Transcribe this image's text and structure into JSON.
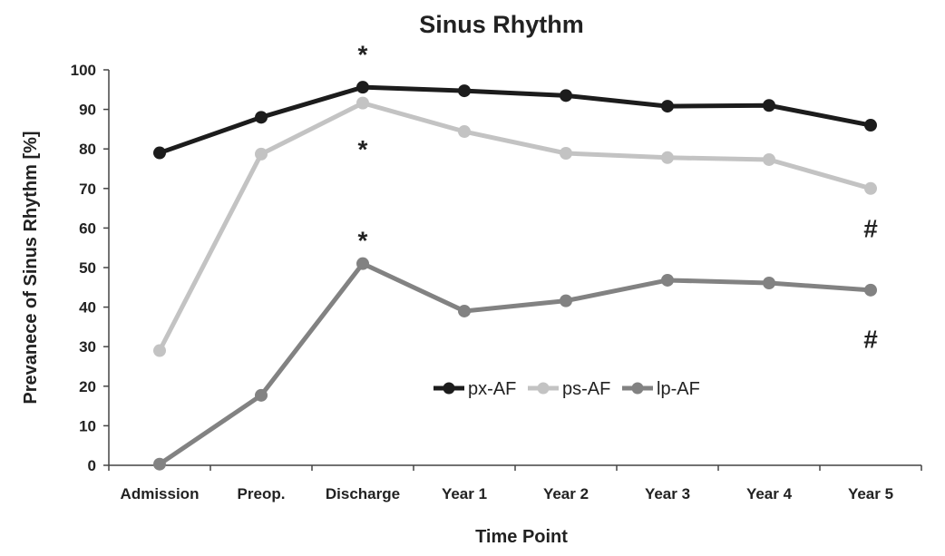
{
  "chart_data": {
    "type": "line",
    "title": "Sinus Rhythm",
    "xlabel": "Time Point",
    "ylabel": "Prevanece of Sinus Rhythm [%]",
    "ylim": [
      0,
      100
    ],
    "yticks": [
      0,
      10,
      20,
      30,
      40,
      50,
      60,
      70,
      80,
      90,
      100
    ],
    "categories": [
      "Admission",
      "Preop.",
      "Discharge",
      "Year 1",
      "Year 2",
      "Year 3",
      "Year 4",
      "Year 5"
    ],
    "grid": false,
    "legend_position": "center",
    "series": [
      {
        "name": "px-AF",
        "color": "#1c1c1c",
        "values": [
          79,
          88,
          95.6,
          94.7,
          93.5,
          90.8,
          91,
          86
        ]
      },
      {
        "name": "ps-AF",
        "color": "#c3c3c3",
        "values": [
          29,
          78.7,
          91.6,
          84.4,
          78.9,
          77.8,
          77.3,
          70
        ]
      },
      {
        "name": "lp-AF",
        "color": "#828282",
        "values": [
          0.3,
          17.7,
          51,
          39,
          41.6,
          46.8,
          46.1,
          44.3
        ]
      }
    ],
    "annotations": [
      {
        "text": "*",
        "category": "Discharge",
        "y": 104
      },
      {
        "text": "*",
        "category": "Discharge",
        "y": 80
      },
      {
        "text": "*",
        "category": "Discharge",
        "y": 57
      },
      {
        "text": "#",
        "category": "Year 5",
        "y": 60
      },
      {
        "text": "#",
        "category": "Year 5",
        "y": 32
      }
    ]
  }
}
